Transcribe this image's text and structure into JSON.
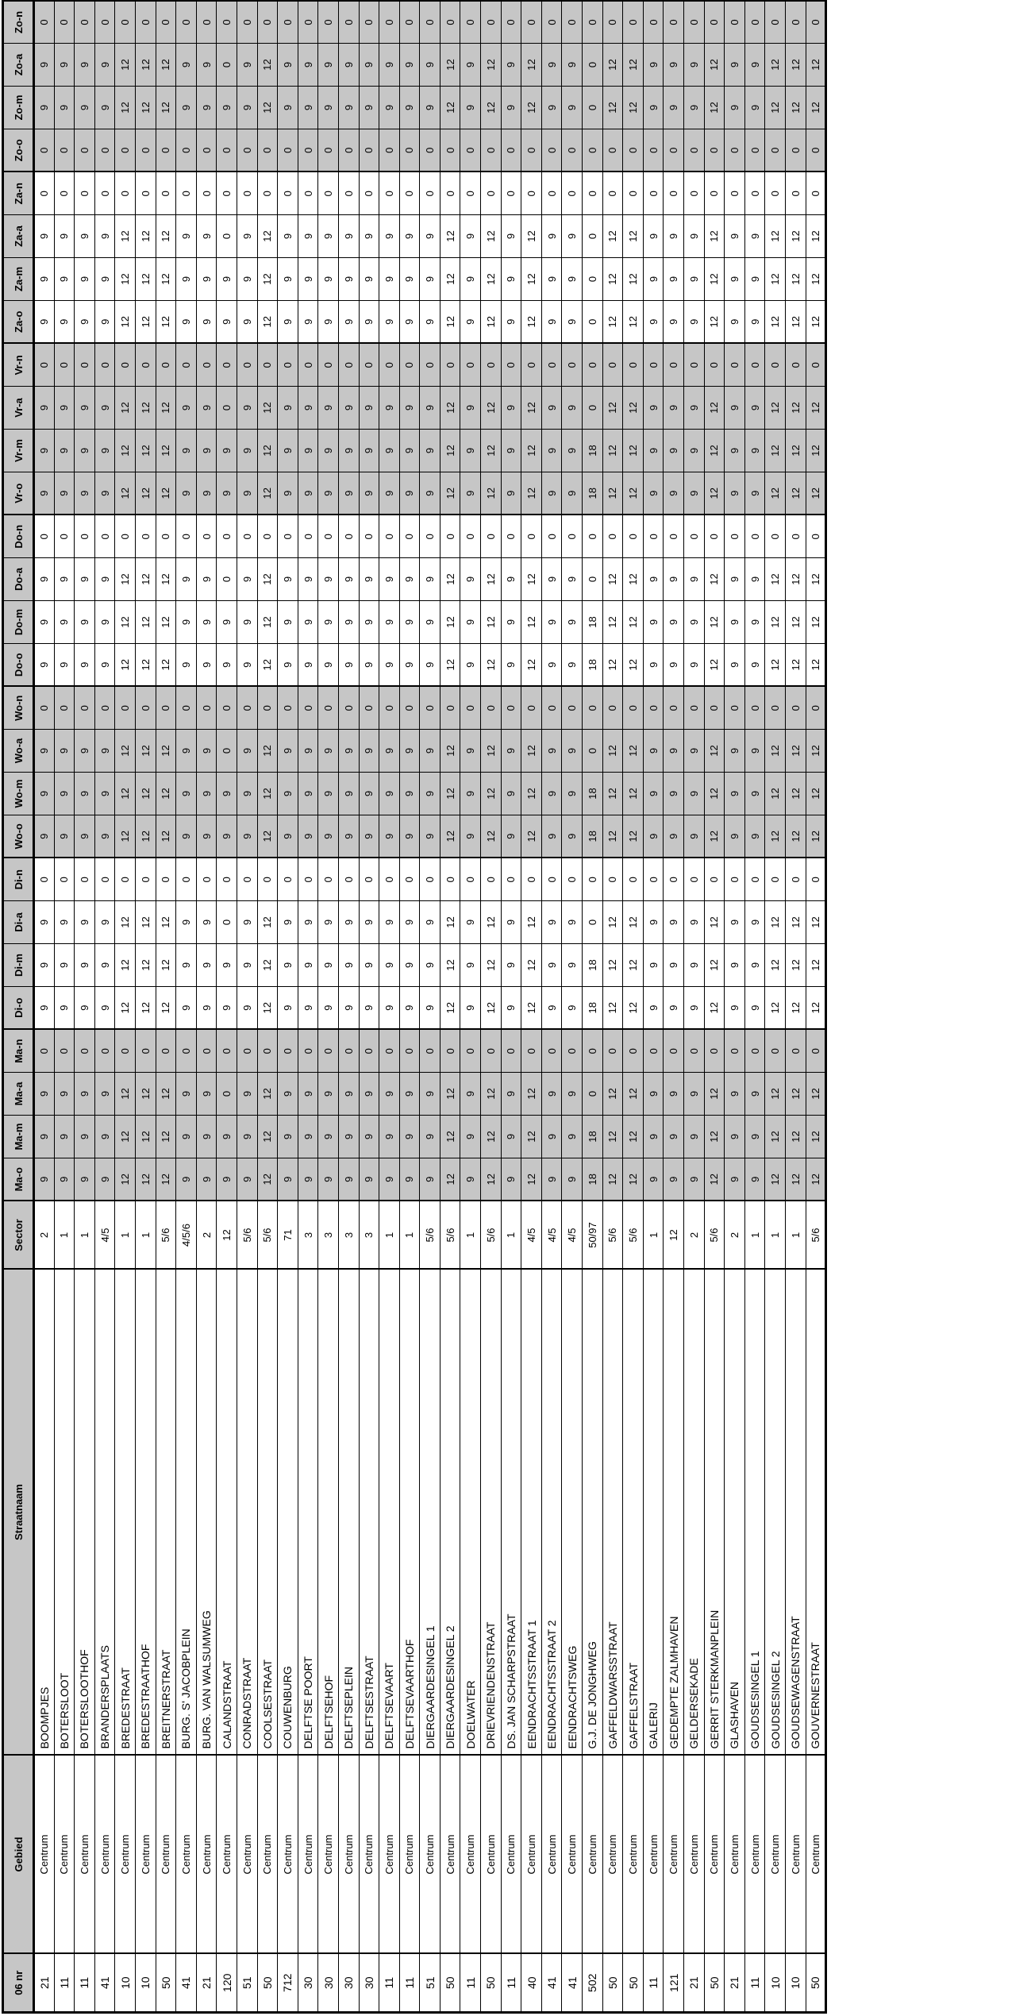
{
  "colors": {
    "grid": "#000000",
    "shaded_cell_bg": "#c6c6c6",
    "cell_bg": "#ffffff",
    "text": "#000000"
  },
  "table": {
    "headers": [
      "06 nr",
      "Gebied",
      "Straatnaam",
      "Sector",
      "Ma-o",
      "Ma-m",
      "Ma-a",
      "Ma-n",
      "Di-o",
      "Di-m",
      "Di-a",
      "Di-n",
      "Wo-o",
      "Wo-m",
      "Wo-a",
      "Wo-n",
      "Do-o",
      "Do-m",
      "Do-a",
      "Do-n",
      "Vr-o",
      "Vr-m",
      "Vr-a",
      "Vr-n",
      "Za-o",
      "Za-m",
      "Za-a",
      "Za-n",
      "Zo-o",
      "Zo-m",
      "Zo-a",
      "Zo-n"
    ],
    "rows": [
      [
        "21",
        "Centrum",
        "BOOMPJES",
        "2",
        9,
        9,
        9,
        0,
        9,
        9,
        9,
        0,
        9,
        9,
        9,
        0,
        9,
        9,
        9,
        0,
        9,
        9,
        9,
        0,
        9,
        9,
        9,
        0,
        0,
        9,
        9,
        0
      ],
      [
        "11",
        "Centrum",
        "BOTERSLOOT",
        "1",
        9,
        9,
        9,
        0,
        9,
        9,
        9,
        0,
        9,
        9,
        9,
        0,
        9,
        9,
        9,
        0,
        9,
        9,
        9,
        0,
        9,
        9,
        9,
        0,
        0,
        9,
        9,
        0
      ],
      [
        "11",
        "Centrum",
        "BOTERSLOOTHOF",
        "1",
        9,
        9,
        9,
        0,
        9,
        9,
        9,
        0,
        9,
        9,
        9,
        0,
        9,
        9,
        9,
        0,
        9,
        9,
        9,
        0,
        9,
        9,
        9,
        0,
        0,
        9,
        9,
        0
      ],
      [
        "41",
        "Centrum",
        "BRANDERSPLAATS",
        "4/5",
        9,
        9,
        9,
        0,
        9,
        9,
        9,
        0,
        9,
        9,
        9,
        0,
        9,
        9,
        9,
        0,
        9,
        9,
        9,
        0,
        9,
        9,
        9,
        0,
        0,
        9,
        9,
        0
      ],
      [
        "10",
        "Centrum",
        "BREDESTRAAT",
        "1",
        12,
        12,
        12,
        0,
        12,
        12,
        12,
        0,
        12,
        12,
        12,
        0,
        12,
        12,
        12,
        0,
        12,
        12,
        12,
        0,
        12,
        12,
        12,
        0,
        0,
        12,
        12,
        0
      ],
      [
        "10",
        "Centrum",
        "BREDESTRAATHOF",
        "1",
        12,
        12,
        12,
        0,
        12,
        12,
        12,
        0,
        12,
        12,
        12,
        0,
        12,
        12,
        12,
        0,
        12,
        12,
        12,
        0,
        12,
        12,
        12,
        0,
        0,
        12,
        12,
        0
      ],
      [
        "50",
        "Centrum",
        "BREITNERSTRAAT",
        "5/6",
        12,
        12,
        12,
        0,
        12,
        12,
        12,
        0,
        12,
        12,
        12,
        0,
        12,
        12,
        12,
        0,
        12,
        12,
        12,
        0,
        12,
        12,
        12,
        0,
        0,
        12,
        12,
        0
      ],
      [
        "41",
        "Centrum",
        "BURG. S' JACOBPLEIN",
        "4/5/6",
        9,
        9,
        9,
        0,
        9,
        9,
        9,
        0,
        9,
        9,
        9,
        0,
        9,
        9,
        9,
        0,
        9,
        9,
        9,
        0,
        9,
        9,
        9,
        0,
        0,
        9,
        9,
        0
      ],
      [
        "21",
        "Centrum",
        "BURG. VAN WALSUMWEG",
        "2",
        9,
        9,
        9,
        0,
        9,
        9,
        9,
        0,
        9,
        9,
        9,
        0,
        9,
        9,
        9,
        0,
        9,
        9,
        9,
        0,
        9,
        9,
        9,
        0,
        0,
        9,
        9,
        0
      ],
      [
        "120",
        "Centrum",
        "CALANDSTRAAT",
        "12",
        9,
        9,
        0,
        0,
        9,
        9,
        0,
        0,
        9,
        9,
        0,
        0,
        9,
        9,
        0,
        0,
        9,
        9,
        0,
        0,
        9,
        9,
        0,
        0,
        0,
        9,
        0,
        0
      ],
      [
        "51",
        "Centrum",
        "CONRADSTRAAT",
        "5/6",
        9,
        9,
        9,
        0,
        9,
        9,
        9,
        0,
        9,
        9,
        9,
        0,
        9,
        9,
        9,
        0,
        9,
        9,
        9,
        0,
        9,
        9,
        9,
        0,
        0,
        9,
        9,
        0
      ],
      [
        "50",
        "Centrum",
        "COOLSESTRAAT",
        "5/6",
        12,
        12,
        12,
        0,
        12,
        12,
        12,
        0,
        12,
        12,
        12,
        0,
        12,
        12,
        12,
        0,
        12,
        12,
        12,
        0,
        12,
        12,
        12,
        0,
        0,
        12,
        12,
        0
      ],
      [
        "712",
        "Centrum",
        "COUWENBURG",
        "71",
        9,
        9,
        9,
        0,
        9,
        9,
        9,
        0,
        9,
        9,
        9,
        0,
        9,
        9,
        9,
        0,
        9,
        9,
        9,
        0,
        9,
        9,
        9,
        0,
        0,
        9,
        9,
        0
      ],
      [
        "30",
        "Centrum",
        "DELFTSE POORT",
        "3",
        9,
        9,
        9,
        0,
        9,
        9,
        9,
        0,
        9,
        9,
        9,
        0,
        9,
        9,
        9,
        0,
        9,
        9,
        9,
        0,
        9,
        9,
        9,
        0,
        0,
        9,
        9,
        0
      ],
      [
        "30",
        "Centrum",
        "DELFTSEHOF",
        "3",
        9,
        9,
        9,
        0,
        9,
        9,
        9,
        0,
        9,
        9,
        9,
        0,
        9,
        9,
        9,
        0,
        9,
        9,
        9,
        0,
        9,
        9,
        9,
        0,
        0,
        9,
        9,
        0
      ],
      [
        "30",
        "Centrum",
        "DELFTSEPLEIN",
        "3",
        9,
        9,
        9,
        0,
        9,
        9,
        9,
        0,
        9,
        9,
        9,
        0,
        9,
        9,
        9,
        0,
        9,
        9,
        9,
        0,
        9,
        9,
        9,
        0,
        0,
        9,
        9,
        0
      ],
      [
        "30",
        "Centrum",
        "DELFTSESTRAAT",
        "3",
        9,
        9,
        9,
        0,
        9,
        9,
        9,
        0,
        9,
        9,
        9,
        0,
        9,
        9,
        9,
        0,
        9,
        9,
        9,
        0,
        9,
        9,
        9,
        0,
        0,
        9,
        9,
        0
      ],
      [
        "11",
        "Centrum",
        "DELFTSEVAART",
        "1",
        9,
        9,
        9,
        0,
        9,
        9,
        9,
        0,
        9,
        9,
        9,
        0,
        9,
        9,
        9,
        0,
        9,
        9,
        9,
        0,
        9,
        9,
        9,
        0,
        0,
        9,
        9,
        0
      ],
      [
        "11",
        "Centrum",
        "DELFTSEVAARTHOF",
        "1",
        9,
        9,
        9,
        0,
        9,
        9,
        9,
        0,
        9,
        9,
        9,
        0,
        9,
        9,
        9,
        0,
        9,
        9,
        9,
        0,
        9,
        9,
        9,
        0,
        0,
        9,
        9,
        0
      ],
      [
        "51",
        "Centrum",
        "DIERGAARDESINGEL 1",
        "5/6",
        9,
        9,
        9,
        0,
        9,
        9,
        9,
        0,
        9,
        9,
        9,
        0,
        9,
        9,
        9,
        0,
        9,
        9,
        9,
        0,
        9,
        9,
        9,
        0,
        0,
        9,
        9,
        0
      ],
      [
        "50",
        "Centrum",
        "DIERGAARDESINGEL 2",
        "5/6",
        12,
        12,
        12,
        0,
        12,
        12,
        12,
        0,
        12,
        12,
        12,
        0,
        12,
        12,
        12,
        0,
        12,
        12,
        12,
        0,
        12,
        12,
        12,
        0,
        0,
        12,
        12,
        0
      ],
      [
        "11",
        "Centrum",
        "DOELWATER",
        "1",
        9,
        9,
        9,
        0,
        9,
        9,
        9,
        0,
        9,
        9,
        9,
        0,
        9,
        9,
        9,
        0,
        9,
        9,
        9,
        0,
        9,
        9,
        9,
        0,
        0,
        9,
        9,
        0
      ],
      [
        "50",
        "Centrum",
        "DRIEVRIENDENSTRAAT",
        "5/6",
        12,
        12,
        12,
        0,
        12,
        12,
        12,
        0,
        12,
        12,
        12,
        0,
        12,
        12,
        12,
        0,
        12,
        12,
        12,
        0,
        12,
        12,
        12,
        0,
        0,
        12,
        12,
        0
      ],
      [
        "11",
        "Centrum",
        "DS. JAN SCHARPSTRAAT",
        "1",
        9,
        9,
        9,
        0,
        9,
        9,
        9,
        0,
        9,
        9,
        9,
        0,
        9,
        9,
        9,
        0,
        9,
        9,
        9,
        0,
        9,
        9,
        9,
        0,
        0,
        9,
        9,
        0
      ],
      [
        "40",
        "Centrum",
        "EENDRACHTSSTRAAT 1",
        "4/5",
        12,
        12,
        12,
        0,
        12,
        12,
        12,
        0,
        12,
        12,
        12,
        0,
        12,
        12,
        12,
        0,
        12,
        12,
        12,
        0,
        12,
        12,
        12,
        0,
        0,
        12,
        12,
        0
      ],
      [
        "41",
        "Centrum",
        "EENDRACHTSSTRAAT 2",
        "4/5",
        9,
        9,
        9,
        0,
        9,
        9,
        9,
        0,
        9,
        9,
        9,
        0,
        9,
        9,
        9,
        0,
        9,
        9,
        9,
        0,
        9,
        9,
        9,
        0,
        0,
        9,
        9,
        0
      ],
      [
        "41",
        "Centrum",
        "EENDRACHTSWEG",
        "4/5",
        9,
        9,
        9,
        0,
        9,
        9,
        9,
        0,
        9,
        9,
        9,
        0,
        9,
        9,
        9,
        0,
        9,
        9,
        9,
        0,
        9,
        9,
        9,
        0,
        0,
        9,
        9,
        0
      ],
      [
        "502",
        "Centrum",
        "G.J. DE JONGHWEG",
        "50/97",
        18,
        18,
        0,
        0,
        18,
        18,
        0,
        0,
        18,
        18,
        0,
        0,
        18,
        18,
        0,
        0,
        18,
        18,
        0,
        0,
        0,
        0,
        0,
        0,
        0,
        0,
        0,
        0
      ],
      [
        "50",
        "Centrum",
        "GAFFELDWARSSTRAAT",
        "5/6",
        12,
        12,
        12,
        0,
        12,
        12,
        12,
        0,
        12,
        12,
        12,
        0,
        12,
        12,
        12,
        0,
        12,
        12,
        12,
        0,
        12,
        12,
        12,
        0,
        0,
        12,
        12,
        0
      ],
      [
        "50",
        "Centrum",
        "GAFFELSTRAAT",
        "5/6",
        12,
        12,
        12,
        0,
        12,
        12,
        12,
        0,
        12,
        12,
        12,
        0,
        12,
        12,
        12,
        0,
        12,
        12,
        12,
        0,
        12,
        12,
        12,
        0,
        0,
        12,
        12,
        0
      ],
      [
        "11",
        "Centrum",
        "GALERIJ",
        "1",
        9,
        9,
        9,
        0,
        9,
        9,
        9,
        0,
        9,
        9,
        9,
        0,
        9,
        9,
        9,
        0,
        9,
        9,
        9,
        0,
        9,
        9,
        9,
        0,
        0,
        9,
        9,
        0
      ],
      [
        "121",
        "Centrum",
        "GEDEMPTE ZALMHAVEN",
        "12",
        9,
        9,
        9,
        0,
        9,
        9,
        9,
        0,
        9,
        9,
        9,
        0,
        9,
        9,
        9,
        0,
        9,
        9,
        9,
        0,
        9,
        9,
        9,
        0,
        0,
        9,
        9,
        0
      ],
      [
        "21",
        "Centrum",
        "GELDERSEKADE",
        "2",
        9,
        9,
        9,
        0,
        9,
        9,
        9,
        0,
        9,
        9,
        9,
        0,
        9,
        9,
        9,
        0,
        9,
        9,
        9,
        0,
        9,
        9,
        9,
        0,
        0,
        9,
        9,
        0
      ],
      [
        "50",
        "Centrum",
        "GERRIT STERKMANPLEIN",
        "5/6",
        12,
        12,
        12,
        0,
        12,
        12,
        12,
        0,
        12,
        12,
        12,
        0,
        12,
        12,
        12,
        0,
        12,
        12,
        12,
        0,
        12,
        12,
        12,
        0,
        0,
        12,
        12,
        0
      ],
      [
        "21",
        "Centrum",
        "GLASHAVEN",
        "2",
        9,
        9,
        9,
        0,
        9,
        9,
        9,
        0,
        9,
        9,
        9,
        0,
        9,
        9,
        9,
        0,
        9,
        9,
        9,
        0,
        9,
        9,
        9,
        0,
        0,
        9,
        9,
        0
      ],
      [
        "11",
        "Centrum",
        "GOUDSESINGEL 1",
        "1",
        9,
        9,
        9,
        0,
        9,
        9,
        9,
        0,
        9,
        9,
        9,
        0,
        9,
        9,
        9,
        0,
        9,
        9,
        9,
        0,
        9,
        9,
        9,
        0,
        0,
        9,
        9,
        0
      ],
      [
        "10",
        "Centrum",
        "GOUDSESINGEL 2",
        "1",
        12,
        12,
        12,
        0,
        12,
        12,
        12,
        0,
        12,
        12,
        12,
        0,
        12,
        12,
        12,
        0,
        12,
        12,
        12,
        0,
        12,
        12,
        12,
        0,
        0,
        12,
        12,
        0
      ],
      [
        "10",
        "Centrum",
        "GOUDSEWAGENSTRAAT",
        "1",
        12,
        12,
        12,
        0,
        12,
        12,
        12,
        0,
        12,
        12,
        12,
        0,
        12,
        12,
        12,
        0,
        12,
        12,
        12,
        0,
        12,
        12,
        12,
        0,
        0,
        12,
        12,
        0
      ],
      [
        "50",
        "Centrum",
        "GOUVERNESTRAAT",
        "5/6",
        12,
        12,
        12,
        0,
        12,
        12,
        12,
        0,
        12,
        12,
        12,
        0,
        12,
        12,
        12,
        0,
        12,
        12,
        12,
        0,
        12,
        12,
        12,
        0,
        0,
        12,
        12,
        0
      ]
    ]
  }
}
